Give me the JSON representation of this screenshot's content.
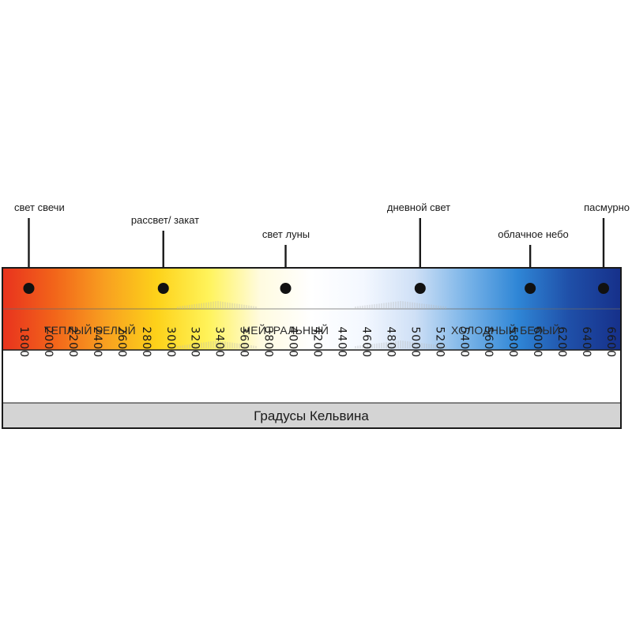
{
  "chart_data": {
    "type": "diagram",
    "axis_title": "Градусы Кельвина",
    "kelvin_ticks": [
      1800,
      2000,
      2200,
      2400,
      2600,
      2800,
      3000,
      3200,
      3400,
      3600,
      3800,
      4000,
      4200,
      4400,
      4600,
      4800,
      5000,
      5200,
      5400,
      5600,
      5800,
      6000,
      6200,
      6400,
      6600
    ],
    "bands": [
      {
        "label": "ТЕПЛЫЙ БЕЛЫЙ",
        "center_kelvin": 2400
      },
      {
        "label": "НЕЙТРАЛЬНЫЙ",
        "center_kelvin": 4000
      },
      {
        "label": "ХОЛОДНЫЙ БЕЛЫЙ",
        "center_kelvin": 5800
      }
    ],
    "markers": [
      {
        "label": "свет свечи",
        "kelvin": 1900
      },
      {
        "label": "рассвет/ закат",
        "kelvin": 3000
      },
      {
        "label": "свет луны",
        "kelvin": 4000
      },
      {
        "label": "дневной свет",
        "kelvin": 5100
      },
      {
        "label": "облачное небо",
        "kelvin": 6000
      },
      {
        "label": "пасмурно",
        "kelvin": 6600
      }
    ],
    "colors": {
      "gradient": [
        "#e8321e",
        "#f2641a",
        "#f8a020",
        "#fdd21a",
        "#fff35a",
        "#fffbe0",
        "#ffffff",
        "#f4f8ff",
        "#cfe0f6",
        "#7ab4e8",
        "#2f86d6",
        "#1f4fa8",
        "#16308a"
      ],
      "axis_band": "#d4d4d4",
      "frame": "#1a1a1a"
    }
  }
}
